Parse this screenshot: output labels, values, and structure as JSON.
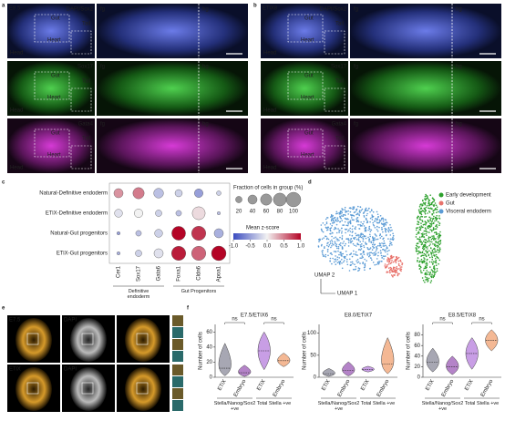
{
  "panel_labels": [
    "a",
    "b",
    "c",
    "d",
    "e",
    "f"
  ],
  "panel_a": {
    "stage": "E8.5",
    "stains": [
      "DAPI/Sox2",
      "Sox17",
      "Gata4"
    ],
    "regions": [
      "fg",
      "hg"
    ],
    "anatomy": [
      "Gut",
      "Heart",
      "Head",
      "Tail"
    ]
  },
  "panel_b": {
    "stage": "ETiX8",
    "stains": [
      "DAPI/Sox2",
      "Sox17",
      "Gata4"
    ],
    "regions": [
      "fg",
      "hg"
    ],
    "anatomy": [
      "Gut",
      "Heart",
      "Head",
      "Tail"
    ]
  },
  "panel_c": {
    "type": "dot",
    "rows": [
      "Natural-Definitive endoderm",
      "ETiX-Definitive endoderm",
      "Natural-Gut progenitors",
      "ETiX-Gut progenitors"
    ],
    "columns": [
      "Cer1",
      "Sox17",
      "Gata6",
      "Foxa1",
      "Cldn6",
      "Apoa1"
    ],
    "groups": [
      "Definitive endoderm",
      "Gut Progenitors"
    ],
    "fraction": [
      [
        40,
        60,
        45,
        25,
        35,
        10
      ],
      [
        30,
        35,
        20,
        15,
        80,
        5
      ],
      [
        5,
        15,
        30,
        90,
        95,
        40
      ],
      [
        5,
        20,
        40,
        95,
        95,
        100
      ]
    ],
    "zscore": [
      [
        0.4,
        0.5,
        -0.3,
        -0.2,
        -0.5,
        -0.2
      ],
      [
        -0.1,
        0.0,
        -0.2,
        -0.3,
        0.1,
        -0.3
      ],
      [
        -0.5,
        -0.3,
        -0.2,
        1.0,
        0.8,
        -0.4
      ],
      [
        -0.4,
        -0.2,
        -0.1,
        0.9,
        0.6,
        1.0
      ]
    ],
    "size_title": "Fraction of cells in group (%)",
    "size_ticks": [
      20,
      40,
      60,
      80,
      100
    ],
    "color_title": "Mean z-score",
    "color_ticks": [
      {
        "value": -1,
        "label": "-1.0"
      },
      {
        "value": -0.5,
        "label": "-0.5"
      },
      {
        "value": 0,
        "label": "0.0"
      },
      {
        "value": 0.5,
        "label": "0.5"
      },
      {
        "value": 1,
        "label": "1.0"
      }
    ]
  },
  "panel_d": {
    "legend": [
      {
        "name": "Early development",
        "color": "#2ca02c"
      },
      {
        "name": "Gut",
        "color": "#e8736c"
      },
      {
        "name": "Visceral endoderm",
        "color": "#5b9bd5"
      }
    ],
    "axes": [
      "UMAP 2",
      "UMAP 1"
    ]
  },
  "panel_e": {
    "rows": [
      "E7.5",
      "ETiX"
    ],
    "stain": "DAPI"
  },
  "panel_f": {
    "y_label": "Number of cells",
    "categories": [
      "ETiX",
      "Embryo",
      "ETiX",
      "Embryo"
    ],
    "group_labels": [
      "Stella/Nanog/Sox2 +ve",
      "Total Stella +ve"
    ],
    "colors": [
      "#8a8a99",
      "#9b59b6",
      "#b57edc",
      "#f0a070"
    ],
    "charts": [
      {
        "title": "E7.5/ETiX6",
        "ylim": [
          0,
          70
        ],
        "yticks": [
          0,
          20,
          40,
          60
        ],
        "min": [
          2,
          1,
          10,
          14
        ],
        "median": [
          12,
          6,
          35,
          22
        ],
        "max": [
          45,
          16,
          60,
          32
        ],
        "annotations": [
          "ns",
          "ns"
        ]
      },
      {
        "title": "E8.0/ETiX7",
        "ylim": [
          0,
          120
        ],
        "yticks": [
          0,
          50,
          100
        ],
        "min": [
          2,
          3,
          12,
          8
        ],
        "median": [
          8,
          15,
          18,
          30
        ],
        "max": [
          20,
          35,
          25,
          90
        ]
      },
      {
        "title": "E8.5/ETiX8",
        "ylim": [
          0,
          100
        ],
        "yticks": [
          0,
          20,
          40,
          60,
          80
        ],
        "min": [
          10,
          5,
          15,
          50
        ],
        "median": [
          28,
          20,
          45,
          70
        ],
        "max": [
          55,
          40,
          75,
          90
        ],
        "annotations": [
          "ns",
          "ns"
        ]
      }
    ]
  }
}
